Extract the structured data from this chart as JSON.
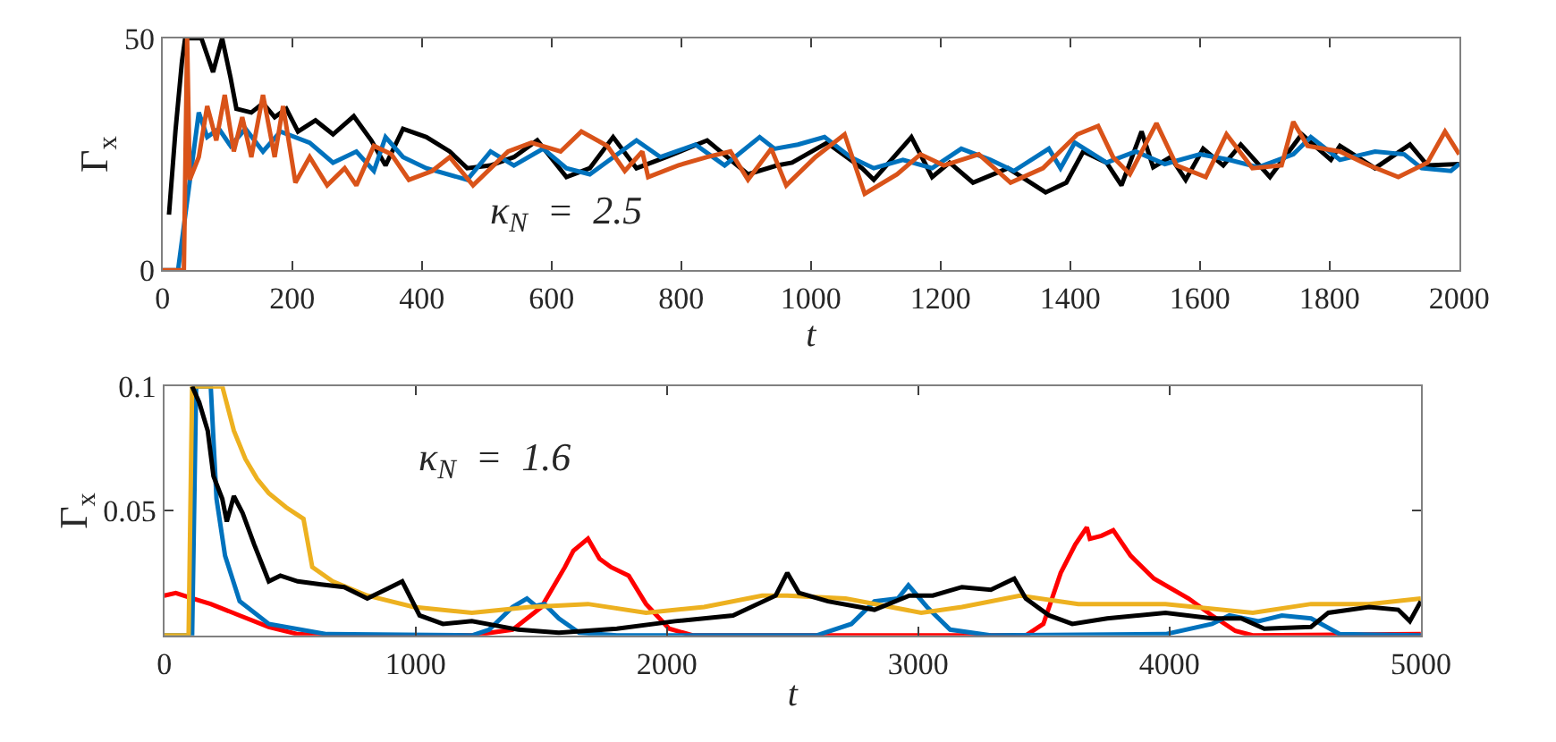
{
  "chart_data": [
    {
      "type": "line",
      "xlabel": "t",
      "ylabel": "Γ$_{x}$",
      "annotations": [
        "κ$_{N}$  =  2.5"
      ],
      "xlim": [
        0,
        2000
      ],
      "xticks": [
        0,
        200,
        400,
        600,
        800,
        1000,
        1200,
        1400,
        1600,
        1800,
        2000
      ],
      "ylim": [
        0,
        50
      ],
      "yticks": [
        0,
        50
      ],
      "series": [
        {
          "color": "#000000",
          "x": [
            10,
            20,
            30,
            35,
            60,
            78,
            92,
            105,
            114,
            137,
            155,
            173,
            191,
            209,
            236,
            263,
            295,
            322,
            344,
            371,
            407,
            443,
            470,
            506,
            542,
            578,
            623,
            659,
            695,
            731,
            777,
            840,
            903,
            948,
            971,
            1025,
            1079,
            1097,
            1155,
            1187,
            1214,
            1250,
            1304,
            1362,
            1394,
            1420,
            1456,
            1479,
            1510,
            1528,
            1555,
            1578,
            1605,
            1636,
            1663,
            1708,
            1757,
            1802,
            1816,
            1870,
            1924,
            1951,
            2000
          ],
          "values": [
            12,
            30,
            45,
            50,
            50,
            42.7,
            50,
            41.5,
            34.8,
            34,
            36,
            33,
            34.8,
            29.9,
            32.3,
            29.3,
            33.2,
            28,
            22.6,
            30.5,
            28.7,
            25.6,
            22,
            22.6,
            24.4,
            28,
            20.1,
            22,
            28.7,
            22,
            24.4,
            28,
            20.7,
            22.6,
            23.2,
            27.5,
            22,
            19.5,
            28.7,
            20.1,
            23.2,
            18.9,
            22,
            16.8,
            18.9,
            25.6,
            23.2,
            18.3,
            29.9,
            22.2,
            24.4,
            19.5,
            26.2,
            22.6,
            27.1,
            20.1,
            29.3,
            23.8,
            26.8,
            22,
            27.1,
            22.6,
            22.9
          ]
        },
        {
          "color": "#0072bd",
          "x": [
            0,
            24,
            56,
            69,
            87,
            105,
            128,
            155,
            182,
            227,
            263,
            299,
            326,
            344,
            371,
            407,
            470,
            506,
            542,
            587,
            623,
            659,
            731,
            768,
            822,
            867,
            921,
            944,
            980,
            1021,
            1061,
            1097,
            1142,
            1187,
            1232,
            1277,
            1313,
            1367,
            1385,
            1407,
            1456,
            1501,
            1546,
            1600,
            1645,
            1690,
            1744,
            1771,
            1816,
            1870,
            1915,
            1942,
            1987,
            2000
          ],
          "values": [
            0,
            0,
            34,
            28.7,
            30.5,
            26.8,
            30.5,
            25.6,
            29.9,
            27.5,
            23.2,
            25.6,
            21.4,
            28.7,
            24.4,
            22,
            19.5,
            25.6,
            22.6,
            26.2,
            22,
            20.7,
            28,
            24.4,
            27.1,
            22.6,
            28.7,
            26.2,
            27.1,
            28.7,
            24.4,
            22,
            23.8,
            22,
            26.2,
            23.8,
            21.4,
            26.2,
            22,
            27.5,
            23.2,
            25.6,
            22.9,
            25,
            23.8,
            22.2,
            25,
            28.7,
            23.8,
            25.6,
            25,
            22,
            21.4,
            22.9
          ]
        },
        {
          "color": "#d95319",
          "x": [
            0,
            33,
            38,
            42,
            56,
            69,
            83,
            96,
            110,
            123,
            137,
            155,
            173,
            186,
            205,
            227,
            254,
            281,
            299,
            326,
            353,
            380,
            416,
            443,
            479,
            533,
            569,
            614,
            646,
            686,
            713,
            740,
            749,
            795,
            840,
            876,
            903,
            939,
            962,
            1007,
            1052,
            1083,
            1133,
            1169,
            1205,
            1259,
            1308,
            1358,
            1411,
            1443,
            1466,
            1492,
            1533,
            1564,
            1609,
            1641,
            1681,
            1726,
            1744,
            1766,
            1816,
            1861,
            1906,
            1951,
            1978,
            2000
          ],
          "values": [
            0,
            0,
            50,
            19.5,
            24.4,
            35.4,
            28,
            37.8,
            25.6,
            33,
            24.4,
            37.8,
            24.4,
            35.4,
            18.9,
            24.4,
            18.3,
            22,
            18.3,
            26.8,
            25,
            19.5,
            21.4,
            24.4,
            18.3,
            25.6,
            27.5,
            25.6,
            29.9,
            26.8,
            21.4,
            25.6,
            20.1,
            22.6,
            24.4,
            25.6,
            19.5,
            26.2,
            18.3,
            24.4,
            29.3,
            16.5,
            20.7,
            25,
            22.6,
            25,
            18.9,
            22,
            29.3,
            31.1,
            24.4,
            20.7,
            31.7,
            22.6,
            20.1,
            29.3,
            22,
            22.6,
            32,
            26.8,
            25.6,
            22.6,
            20.1,
            23.2,
            29.9,
            25
          ]
        }
      ]
    },
    {
      "type": "line",
      "xlabel": "t",
      "ylabel": "Γ$_{x}$",
      "annotations": [
        "κ$_{N}$  =  1.6"
      ],
      "xlim": [
        0,
        5000
      ],
      "xticks": [
        0,
        1000,
        2000,
        3000,
        4000,
        5000
      ],
      "ylim": [
        0,
        0.1
      ],
      "yticks": [
        0.05,
        0.1
      ],
      "series": [
        {
          "color": "#ff0000",
          "x": [
            0,
            46,
            115,
            185,
            300,
            416,
            531,
            647,
            1224,
            1386,
            1501,
            1594,
            1628,
            1686,
            1732,
            1778,
            1848,
            1917,
            2009,
            2102,
            3428,
            3498,
            3567,
            3625,
            3671,
            3683,
            3729,
            3776,
            3845,
            3938,
            4076,
            4169,
            4262,
            4331,
            5000
          ],
          "values": [
            0.016,
            0.017,
            0.0148,
            0.0126,
            0.008,
            0.0034,
            0.0005,
            0,
            0,
            0.0023,
            0.0114,
            0.0274,
            0.034,
            0.0388,
            0.0308,
            0.0274,
            0.024,
            0.0126,
            0.0027,
            0,
            0,
            0.0046,
            0.0251,
            0.0365,
            0.0434,
            0.0388,
            0.04,
            0.0422,
            0.032,
            0.0228,
            0.0148,
            0.008,
            0.0018,
            0,
            0.0005
          ]
        },
        {
          "color": "#0072bd",
          "x": [
            0,
            111,
            127,
            185,
            208,
            242,
            300,
            416,
            647,
            1224,
            1293,
            1386,
            1443,
            1478,
            1513,
            1570,
            1651,
            1801,
            2595,
            2734,
            2826,
            2919,
            2961,
            3035,
            3127,
            3289,
            3984,
            4169,
            4238,
            4354,
            4447,
            4563,
            4678,
            5000
          ],
          "values": [
            0,
            0,
            0.1,
            0.1,
            0.0548,
            0.032,
            0.0137,
            0.0046,
            0.0005,
            0,
            0.0023,
            0.0114,
            0.0148,
            0.0119,
            0.0126,
            0.0068,
            0.0011,
            0,
            0,
            0.0046,
            0.0137,
            0.0148,
            0.0201,
            0.0114,
            0.0023,
            0,
            0.0005,
            0.0046,
            0.008,
            0.0057,
            0.008,
            0.0068,
            0.0005,
            0
          ]
        },
        {
          "color": "#edb120",
          "x": [
            0,
            97,
            111,
            231,
            277,
            323,
            370,
            416,
            485,
            554,
            589,
            670,
            808,
            993,
            1224,
            1455,
            1686,
            1917,
            2148,
            2379,
            2479,
            2711,
            3012,
            3174,
            3405,
            3637,
            3984,
            4331,
            4563,
            4794,
            5000
          ],
          "values": [
            0,
            0,
            0.1,
            0.1,
            0.0822,
            0.0708,
            0.0628,
            0.0571,
            0.0514,
            0.0468,
            0.0274,
            0.0217,
            0.016,
            0.0114,
            0.0091,
            0.0114,
            0.0126,
            0.0091,
            0.0114,
            0.016,
            0.016,
            0.0148,
            0.0091,
            0.0114,
            0.016,
            0.0126,
            0.0126,
            0.0091,
            0.0126,
            0.0126,
            0.0148
          ]
        },
        {
          "color": "#000000",
          "x": [
            111,
            139,
            173,
            196,
            231,
            249,
            277,
            312,
            358,
            416,
            462,
            531,
            624,
            716,
            808,
            901,
            947,
            1016,
            1109,
            1224,
            1409,
            1570,
            1801,
            2032,
            2263,
            2433,
            2479,
            2525,
            2641,
            2826,
            2965,
            3058,
            3174,
            3289,
            3382,
            3428,
            3521,
            3613,
            3752,
            3984,
            4169,
            4285,
            4377,
            4563,
            4632,
            4794,
            4910,
            4956,
            5000
          ],
          "values": [
            0.1,
            0.0936,
            0.0822,
            0.0639,
            0.0548,
            0.0457,
            0.0559,
            0.0491,
            0.0365,
            0.0217,
            0.024,
            0.0217,
            0.0205,
            0.0194,
            0.0148,
            0.0194,
            0.0217,
            0.008,
            0.0046,
            0.0057,
            0.0023,
            0.0011,
            0.0027,
            0.0057,
            0.008,
            0.016,
            0.0251,
            0.0171,
            0.0137,
            0.0103,
            0.016,
            0.016,
            0.0194,
            0.0183,
            0.0228,
            0.0148,
            0.008,
            0.0046,
            0.0068,
            0.0091,
            0.0068,
            0.0068,
            0.0027,
            0.0034,
            0.0091,
            0.0114,
            0.0103,
            0.0057,
            0.0137
          ]
        }
      ]
    }
  ]
}
